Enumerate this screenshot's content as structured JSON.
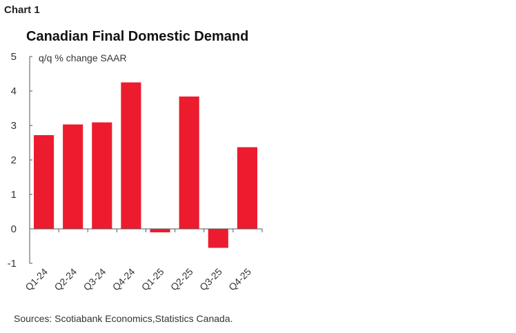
{
  "header": {
    "chart_label": "Chart 1"
  },
  "chart_data": {
    "type": "bar",
    "title": "Canadian Final Domestic Demand",
    "ylabel": "q/q % change SAAR",
    "xlabel": "",
    "categories": [
      "Q1-24",
      "Q2-24",
      "Q3-24",
      "Q4-24",
      "Q1-25",
      "Q2-25",
      "Q3-25",
      "Q4-25"
    ],
    "values": [
      2.72,
      3.03,
      3.09,
      4.25,
      -0.1,
      3.84,
      -0.55,
      2.37
    ],
    "ylim": [
      -1,
      5
    ],
    "yticks": [
      "-1",
      "0",
      "1",
      "2",
      "3",
      "4",
      "5"
    ],
    "grid": false,
    "bar_color": "#ec1c2e",
    "source": "Sources: Scotiabank Economics,Statistics Canada."
  }
}
